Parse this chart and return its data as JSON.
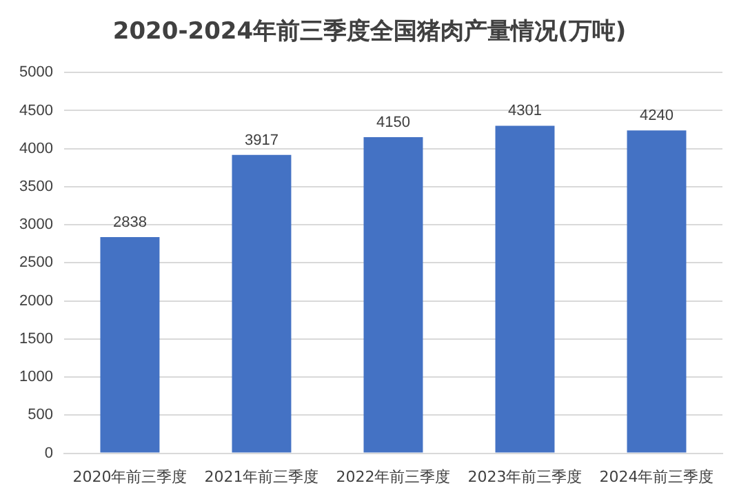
{
  "chart_data": {
    "type": "bar",
    "title": "2020-2024年前三季度全国猪肉产量情况(万吨)",
    "categories": [
      "2020年前三季度",
      "2021年前三季度",
      "2022年前三季度",
      "2023年前三季度",
      "2024年前三季度"
    ],
    "values": [
      2838,
      3917,
      4150,
      4301,
      4240
    ],
    "color": "#4472c4",
    "ylim": [
      0,
      5000
    ],
    "yticks": [
      0,
      500,
      1000,
      1500,
      2000,
      2500,
      3000,
      3500,
      4000,
      4500,
      5000
    ],
    "grid": "y",
    "data_labels": true,
    "legend": false
  }
}
